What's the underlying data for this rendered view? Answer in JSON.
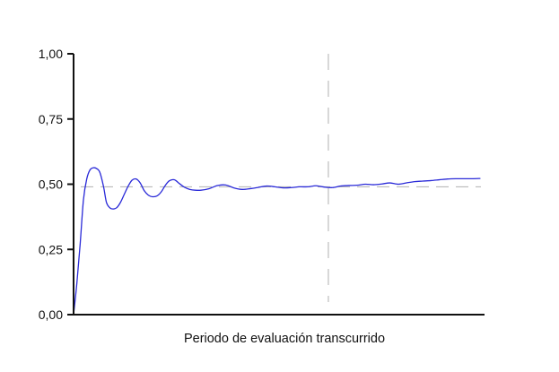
{
  "chart_data": {
    "type": "line",
    "title": "",
    "xlabel": "Periodo de evaluación transcurrido",
    "ylabel": "",
    "ylim": [
      0,
      1
    ],
    "xlim": [
      0,
      100
    ],
    "yticks": [
      {
        "value": 0.0,
        "label": "0,00"
      },
      {
        "value": 0.25,
        "label": "0,25"
      },
      {
        "value": 0.5,
        "label": "0,50"
      },
      {
        "value": 0.75,
        "label": "0,75"
      },
      {
        "value": 1.0,
        "label": "1,00"
      }
    ],
    "grid": false,
    "legend": "none",
    "reference_line": {
      "orientation": "horizontal",
      "y": 0.49,
      "style": "dashed",
      "color": "#b0b0b0"
    },
    "marker_line": {
      "orientation": "vertical",
      "x": 62,
      "style": "dashed",
      "color": "#b0b0b0"
    },
    "series": [
      {
        "color": "#2a2ad8",
        "x": [
          0,
          0.8,
          1.6,
          2.4,
          3.2,
          4,
          4.8,
          5.6,
          6.4,
          7.3,
          8,
          8.8,
          9.6,
          10.5,
          11.4,
          12.3,
          13.2,
          14.2,
          15.2,
          16.2,
          17.2,
          18.2,
          19.2,
          20.3,
          21.3,
          22.3,
          23.3,
          24.5,
          25.8,
          27,
          28.3,
          29.6,
          31,
          33,
          35,
          37,
          39,
          41,
          43,
          45,
          47,
          49,
          51,
          53,
          55,
          57,
          59,
          61,
          63,
          65,
          67,
          69,
          71,
          73,
          75,
          77,
          79,
          81,
          83,
          85,
          87,
          89,
          91,
          93,
          95,
          97,
          99
        ],
        "values": [
          0.0,
          0.12,
          0.27,
          0.44,
          0.52,
          0.555,
          0.563,
          0.56,
          0.545,
          0.49,
          0.43,
          0.41,
          0.405,
          0.41,
          0.43,
          0.46,
          0.49,
          0.515,
          0.52,
          0.505,
          0.475,
          0.458,
          0.452,
          0.455,
          0.47,
          0.495,
          0.513,
          0.517,
          0.502,
          0.488,
          0.48,
          0.477,
          0.477,
          0.483,
          0.495,
          0.497,
          0.486,
          0.48,
          0.483,
          0.488,
          0.493,
          0.49,
          0.486,
          0.487,
          0.49,
          0.49,
          0.494,
          0.489,
          0.487,
          0.493,
          0.495,
          0.496,
          0.5,
          0.498,
          0.501,
          0.505,
          0.5,
          0.505,
          0.51,
          0.512,
          0.514,
          0.517,
          0.52,
          0.521,
          0.521,
          0.521,
          0.522
        ]
      }
    ]
  }
}
